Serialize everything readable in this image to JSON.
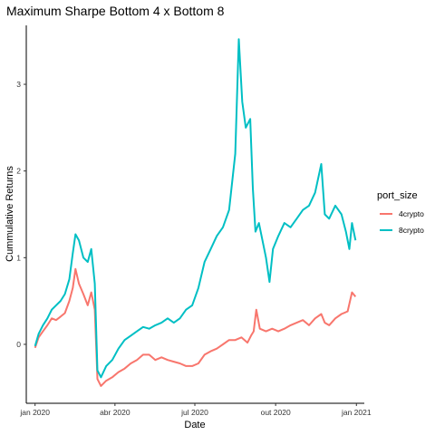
{
  "chart_data": {
    "type": "line",
    "title": "Maximum Sharpe Bottom 4 x Bottom 8",
    "xlabel": "Date",
    "ylabel": "Cummulative Returns",
    "x_ticks": [
      {
        "label": "jan 2020",
        "date": "2020-01-01"
      },
      {
        "label": "abr 2020",
        "date": "2020-04-01"
      },
      {
        "label": "jul 2020",
        "date": "2020-07-01"
      },
      {
        "label": "out 2020",
        "date": "2020-10-01"
      },
      {
        "label": "jan 2021",
        "date": "2021-01-01"
      }
    ],
    "y_ticks": [
      0,
      1,
      2,
      3
    ],
    "xlim": [
      "2019-12-22",
      "2021-01-10"
    ],
    "ylim": [
      -0.68,
      3.68
    ],
    "grid": false,
    "legend": {
      "title": "port_size",
      "position": "right"
    },
    "series": [
      {
        "name": "4crypto",
        "color": "#F8766D",
        "points": [
          [
            "2020-01-01",
            -0.04
          ],
          [
            "2020-01-05",
            0.08
          ],
          [
            "2020-01-10",
            0.15
          ],
          [
            "2020-01-15",
            0.22
          ],
          [
            "2020-01-20",
            0.3
          ],
          [
            "2020-01-25",
            0.28
          ],
          [
            "2020-01-30",
            0.32
          ],
          [
            "2020-02-04",
            0.36
          ],
          [
            "2020-02-09",
            0.5
          ],
          [
            "2020-02-13",
            0.65
          ],
          [
            "2020-02-16",
            0.87
          ],
          [
            "2020-02-20",
            0.7
          ],
          [
            "2020-02-25",
            0.58
          ],
          [
            "2020-03-01",
            0.45
          ],
          [
            "2020-03-05",
            0.6
          ],
          [
            "2020-03-09",
            0.4
          ],
          [
            "2020-03-12",
            -0.4
          ],
          [
            "2020-03-16",
            -0.48
          ],
          [
            "2020-03-22",
            -0.42
          ],
          [
            "2020-03-29",
            -0.38
          ],
          [
            "2020-04-05",
            -0.32
          ],
          [
            "2020-04-12",
            -0.28
          ],
          [
            "2020-04-19",
            -0.22
          ],
          [
            "2020-04-26",
            -0.18
          ],
          [
            "2020-05-03",
            -0.12
          ],
          [
            "2020-05-10",
            -0.12
          ],
          [
            "2020-05-17",
            -0.18
          ],
          [
            "2020-05-24",
            -0.15
          ],
          [
            "2020-05-31",
            -0.18
          ],
          [
            "2020-06-07",
            -0.2
          ],
          [
            "2020-06-14",
            -0.22
          ],
          [
            "2020-06-21",
            -0.25
          ],
          [
            "2020-06-28",
            -0.25
          ],
          [
            "2020-07-05",
            -0.22
          ],
          [
            "2020-07-12",
            -0.12
          ],
          [
            "2020-07-19",
            -0.08
          ],
          [
            "2020-07-26",
            -0.05
          ],
          [
            "2020-08-02",
            0.0
          ],
          [
            "2020-08-09",
            0.05
          ],
          [
            "2020-08-16",
            0.05
          ],
          [
            "2020-08-23",
            0.08
          ],
          [
            "2020-08-30",
            0.02
          ],
          [
            "2020-09-03",
            0.1
          ],
          [
            "2020-09-06",
            0.15
          ],
          [
            "2020-09-09",
            0.4
          ],
          [
            "2020-09-13",
            0.18
          ],
          [
            "2020-09-20",
            0.15
          ],
          [
            "2020-09-27",
            0.18
          ],
          [
            "2020-10-04",
            0.15
          ],
          [
            "2020-10-11",
            0.18
          ],
          [
            "2020-10-18",
            0.22
          ],
          [
            "2020-10-25",
            0.25
          ],
          [
            "2020-11-01",
            0.28
          ],
          [
            "2020-11-08",
            0.22
          ],
          [
            "2020-11-15",
            0.3
          ],
          [
            "2020-11-22",
            0.35
          ],
          [
            "2020-11-26",
            0.25
          ],
          [
            "2020-12-01",
            0.22
          ],
          [
            "2020-12-08",
            0.3
          ],
          [
            "2020-12-15",
            0.35
          ],
          [
            "2020-12-22",
            0.38
          ],
          [
            "2020-12-27",
            0.6
          ],
          [
            "2020-12-31",
            0.55
          ]
        ]
      },
      {
        "name": "8crypto",
        "color": "#00BFC4",
        "points": [
          [
            "2020-01-01",
            -0.02
          ],
          [
            "2020-01-05",
            0.12
          ],
          [
            "2020-01-10",
            0.22
          ],
          [
            "2020-01-15",
            0.3
          ],
          [
            "2020-01-20",
            0.4
          ],
          [
            "2020-01-25",
            0.45
          ],
          [
            "2020-01-30",
            0.5
          ],
          [
            "2020-02-04",
            0.58
          ],
          [
            "2020-02-09",
            0.75
          ],
          [
            "2020-02-13",
            1.05
          ],
          [
            "2020-02-16",
            1.27
          ],
          [
            "2020-02-20",
            1.2
          ],
          [
            "2020-02-25",
            1.0
          ],
          [
            "2020-03-01",
            0.95
          ],
          [
            "2020-03-05",
            1.1
          ],
          [
            "2020-03-09",
            0.7
          ],
          [
            "2020-03-12",
            -0.3
          ],
          [
            "2020-03-16",
            -0.38
          ],
          [
            "2020-03-22",
            -0.25
          ],
          [
            "2020-03-29",
            -0.18
          ],
          [
            "2020-04-05",
            -0.05
          ],
          [
            "2020-04-12",
            0.05
          ],
          [
            "2020-04-19",
            0.1
          ],
          [
            "2020-04-26",
            0.15
          ],
          [
            "2020-05-03",
            0.2
          ],
          [
            "2020-05-10",
            0.18
          ],
          [
            "2020-05-17",
            0.22
          ],
          [
            "2020-05-24",
            0.25
          ],
          [
            "2020-05-31",
            0.3
          ],
          [
            "2020-06-07",
            0.25
          ],
          [
            "2020-06-14",
            0.3
          ],
          [
            "2020-06-21",
            0.4
          ],
          [
            "2020-06-28",
            0.45
          ],
          [
            "2020-07-05",
            0.65
          ],
          [
            "2020-07-12",
            0.95
          ],
          [
            "2020-07-19",
            1.1
          ],
          [
            "2020-07-26",
            1.25
          ],
          [
            "2020-08-02",
            1.35
          ],
          [
            "2020-08-09",
            1.55
          ],
          [
            "2020-08-16",
            2.2
          ],
          [
            "2020-08-20",
            3.52
          ],
          [
            "2020-08-24",
            2.8
          ],
          [
            "2020-08-28",
            2.5
          ],
          [
            "2020-09-02",
            2.6
          ],
          [
            "2020-09-05",
            1.8
          ],
          [
            "2020-09-08",
            1.3
          ],
          [
            "2020-09-12",
            1.4
          ],
          [
            "2020-09-16",
            1.2
          ],
          [
            "2020-09-20",
            1.0
          ],
          [
            "2020-09-24",
            0.72
          ],
          [
            "2020-09-28",
            1.1
          ],
          [
            "2020-10-04",
            1.25
          ],
          [
            "2020-10-11",
            1.4
          ],
          [
            "2020-10-18",
            1.35
          ],
          [
            "2020-10-25",
            1.45
          ],
          [
            "2020-11-01",
            1.55
          ],
          [
            "2020-11-08",
            1.6
          ],
          [
            "2020-11-15",
            1.75
          ],
          [
            "2020-11-22",
            2.08
          ],
          [
            "2020-11-26",
            1.5
          ],
          [
            "2020-12-01",
            1.45
          ],
          [
            "2020-12-08",
            1.6
          ],
          [
            "2020-12-15",
            1.5
          ],
          [
            "2020-12-20",
            1.3
          ],
          [
            "2020-12-24",
            1.1
          ],
          [
            "2020-12-27",
            1.4
          ],
          [
            "2020-12-31",
            1.2
          ]
        ]
      }
    ]
  }
}
